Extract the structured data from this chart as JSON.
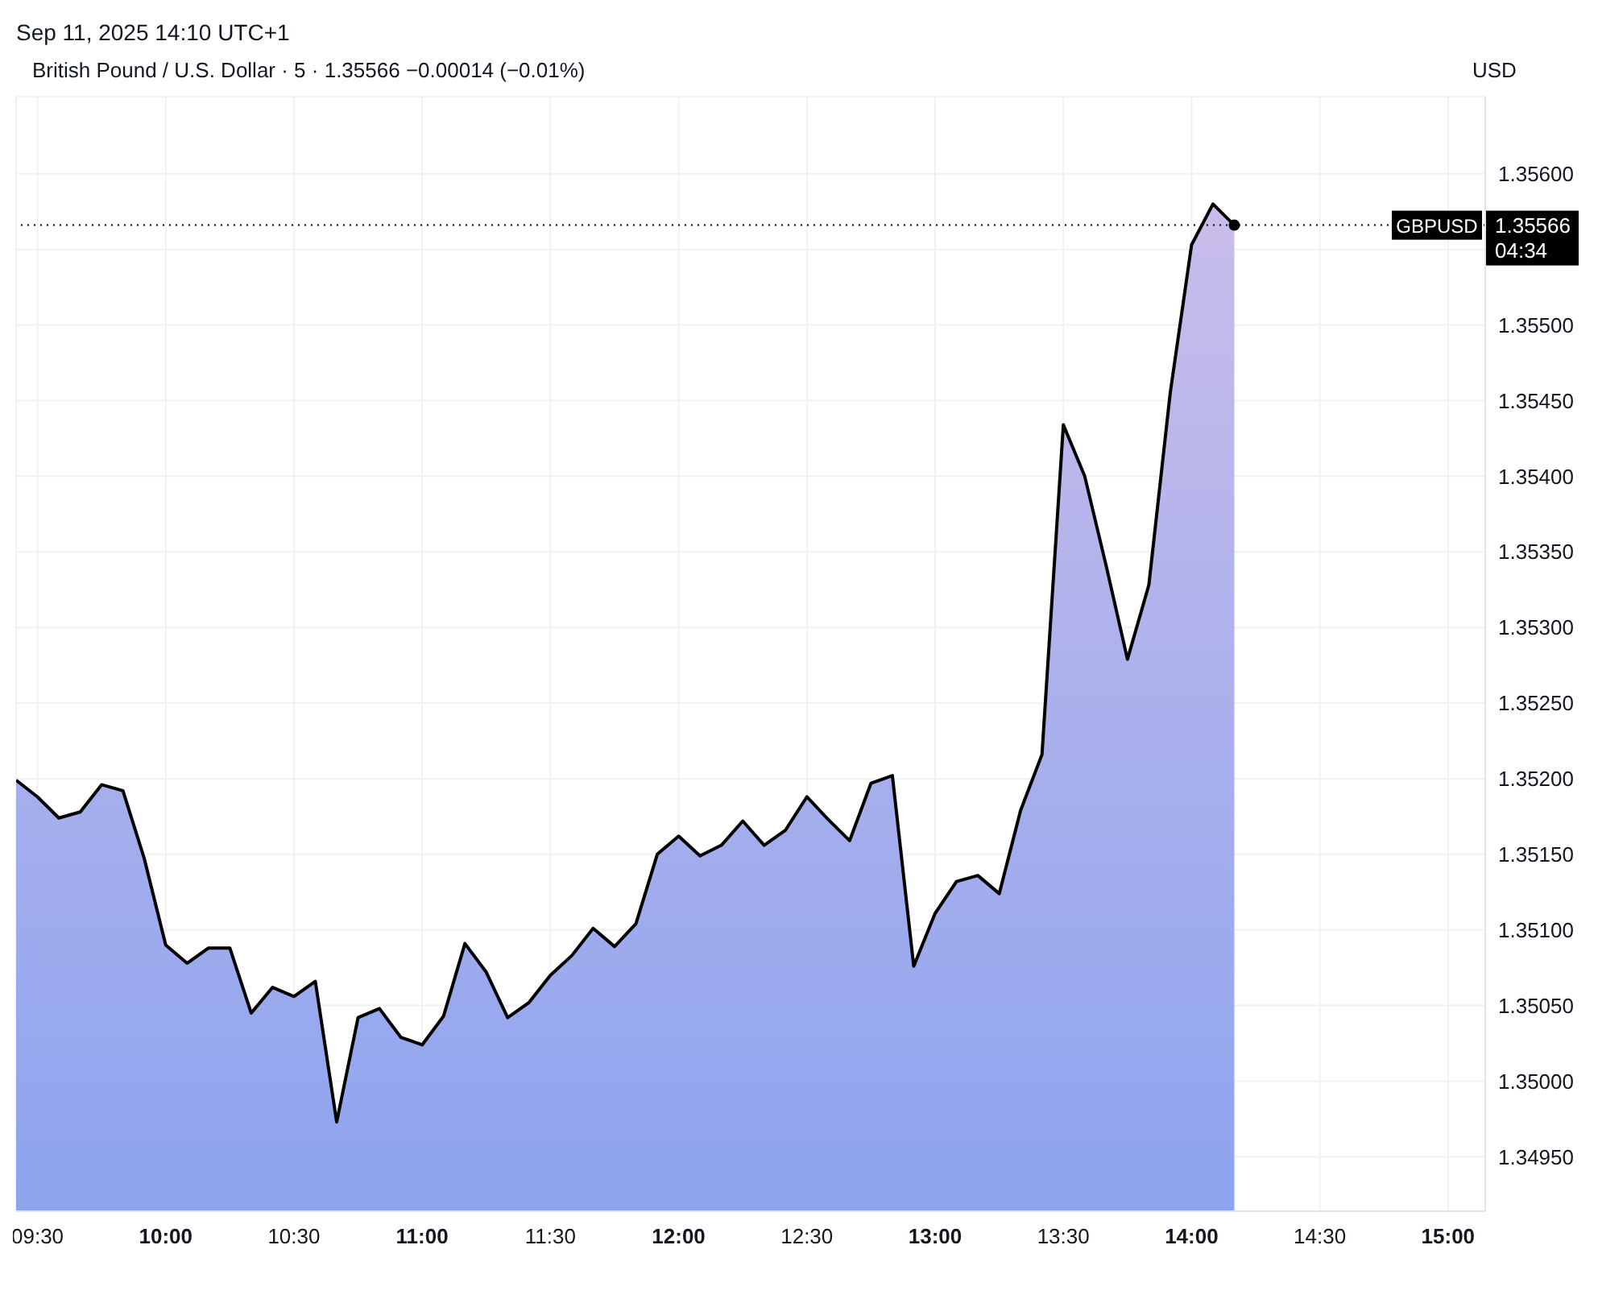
{
  "chart_data": {
    "type": "area",
    "title": "British Pound / U.S. Dollar · 5 · 1.35566 −0.00014 (−0.01%)",
    "ylabel": "USD",
    "annotations": [
      "Sep 11, 2025 14:10 UTC+1",
      "04:34",
      "1.35566"
    ],
    "x": [
      9.41667,
      9.5,
      9.58333,
      9.66667,
      9.75,
      9.83333,
      9.91667,
      10,
      10.08333,
      10.16667,
      10.25,
      10.33333,
      10.41667,
      10.5,
      10.58333,
      10.66667,
      10.75,
      10.83333,
      10.91667,
      11,
      11.08333,
      11.16667,
      11.25,
      11.33333,
      11.41667,
      11.5,
      11.58333,
      11.66667,
      11.75,
      11.83333,
      11.91667,
      12,
      12.08333,
      12.16667,
      12.25,
      12.33333,
      12.41667,
      12.5,
      12.58333,
      12.66667,
      12.75,
      12.83333,
      12.91667,
      13,
      13.08333,
      13.16667,
      13.25,
      13.33333,
      13.41667,
      13.5,
      13.58333,
      13.66667,
      13.75,
      13.83333,
      13.91667,
      14,
      14.08333,
      14.16667
    ],
    "series": [
      {
        "color": "#8da4ef",
        "values": [
          1.35199,
          1.35188,
          1.35174,
          1.35178,
          1.35196,
          1.35192,
          1.35147,
          1.3509,
          1.35078,
          1.35088,
          1.35088,
          1.35045,
          1.35062,
          1.35056,
          1.35066,
          1.34973,
          1.35042,
          1.35048,
          1.35029,
          1.35024,
          1.35043,
          1.35091,
          1.35072,
          1.35042,
          1.35052,
          1.3507,
          1.35083,
          1.35101,
          1.35089,
          1.35104,
          1.3515,
          1.35162,
          1.35149,
          1.35156,
          1.35172,
          1.35156,
          1.35166,
          1.35188,
          1.35173,
          1.35159,
          1.35197,
          1.35202,
          1.35076,
          1.35111,
          1.35132,
          1.35136,
          1.35124,
          1.35179,
          1.35216,
          1.35434,
          1.354,
          1.35341,
          1.35279,
          1.35328,
          1.35455,
          1.35553,
          1.3558,
          1.35566
        ]
      }
    ],
    "xlim": [
      9.41667,
      15.145
    ],
    "xticks": [
      {
        "value": 9.5,
        "label": "09:30"
      },
      {
        "value": 10,
        "label": "10:00"
      },
      {
        "value": 10.5,
        "label": "10:30"
      },
      {
        "value": 11,
        "label": "11:00"
      },
      {
        "value": 11.5,
        "label": "11:30"
      },
      {
        "value": 12,
        "label": "12:00"
      },
      {
        "value": 12.5,
        "label": "12:30"
      },
      {
        "value": 13,
        "label": "13:00"
      },
      {
        "value": 13.5,
        "label": "13:30"
      },
      {
        "value": 14,
        "label": "14:00"
      },
      {
        "value": 14.5,
        "label": "14:30"
      },
      {
        "value": 15,
        "label": "15:00"
      }
    ],
    "ylim": [
      1.34914,
      1.35651
    ],
    "yticks": [
      {
        "value": 1.3495,
        "label": "1.34950"
      },
      {
        "value": 1.35,
        "label": "1.35000"
      },
      {
        "value": 1.3505,
        "label": "1.35050"
      },
      {
        "value": 1.351,
        "label": "1.35100"
      },
      {
        "value": 1.3515,
        "label": "1.35150"
      },
      {
        "value": 1.352,
        "label": "1.35200"
      },
      {
        "value": 1.3525,
        "label": "1.35250"
      },
      {
        "value": 1.353,
        "label": "1.35300"
      },
      {
        "value": 1.3535,
        "label": "1.35350"
      },
      {
        "value": 1.354,
        "label": "1.35400"
      },
      {
        "value": 1.3545,
        "label": "1.35450"
      },
      {
        "value": 1.355,
        "label": "1.35500"
      },
      {
        "value": 1.3555,
        "label": null
      },
      {
        "value": 1.356,
        "label": "1.35600"
      }
    ],
    "ref_lines": [
      {
        "axis": "y",
        "value": 1.35566,
        "label": "GBPUSD",
        "line_style": "dotted",
        "color": "#000000"
      }
    ],
    "grid": true,
    "legend": false,
    "marker": "none",
    "line_style": "solid"
  }
}
